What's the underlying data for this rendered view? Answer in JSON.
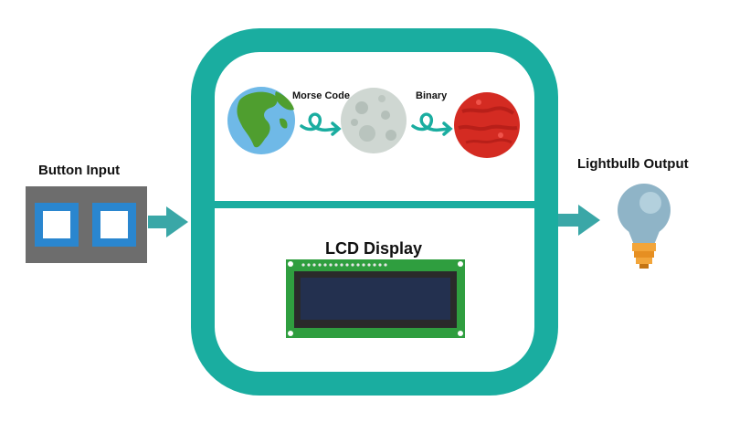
{
  "labels": {
    "button_input": "Button Input",
    "lightbulb_output": "Lightbulb Output",
    "lcd_display": "LCD Display",
    "morse_code": "Morse Code",
    "binary": "Binary"
  },
  "colors": {
    "teal": "#1aada0",
    "teal_arrow": "#3aa7a7",
    "button_panel": "#6d6d6d",
    "button_blue": "#2a86cf",
    "lcd_board": "#2f9e3f",
    "lcd_screen": "#23304f",
    "earth_ocean": "#6fb9e7",
    "earth_land": "#4f9e2f",
    "moon": "#cfd7d2",
    "mars": "#d42b22",
    "bulb_glass": "#8fb4c7",
    "bulb_base": "#f2a53a"
  },
  "icons": [
    "earth-icon",
    "moon-icon",
    "mars-icon",
    "lightbulb-icon",
    "squiggle-arrow-icon",
    "lcd-icon",
    "button-icon"
  ]
}
